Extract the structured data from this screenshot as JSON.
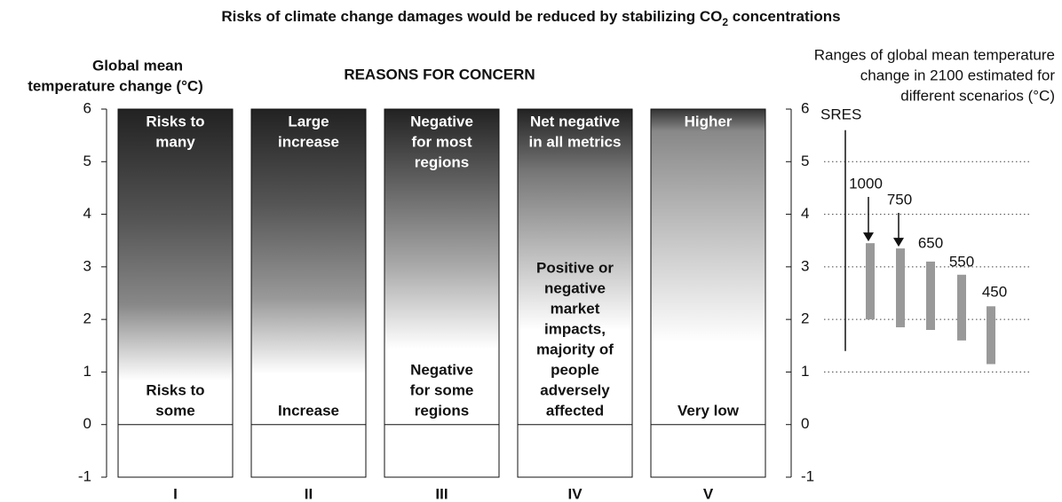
{
  "chart_data": {
    "type": "embers",
    "title": [
      "Risks of climate change damages would be reduced by stabilizing CO",
      "2",
      " concentrations"
    ],
    "y_label": [
      "Global mean",
      "temperature change (°C)"
    ],
    "columns_title": "REASONS FOR CONCERN",
    "right_title": [
      "Ranges of global mean temperature",
      "change in 2100 estimated for",
      "different scenarios (°C)"
    ],
    "ylim": [
      -1,
      6
    ],
    "yticks": [
      -1,
      0,
      1,
      2,
      3,
      4,
      5,
      6
    ],
    "columns": [
      {
        "numeral": "I",
        "top": [
          "Risks to",
          "many"
        ],
        "bottom": [
          "Risks to",
          "some"
        ]
      },
      {
        "numeral": "II",
        "top": [
          "Large",
          "increase"
        ],
        "bottom": [
          "Increase"
        ]
      },
      {
        "numeral": "III",
        "top": [
          "Negative",
          "for most",
          "regions"
        ],
        "bottom": [
          "Negative",
          "for some",
          "regions"
        ]
      },
      {
        "numeral": "IV",
        "top": [
          "Net negative",
          "in all metrics"
        ],
        "bottom": [
          "Positive or",
          "negative",
          "market",
          "impacts,",
          "majority of",
          "people",
          "adversely",
          "affected"
        ]
      },
      {
        "numeral": "V",
        "top": [
          "Higher"
        ],
        "bottom": [
          "Very low"
        ]
      }
    ],
    "sres": {
      "name": "SRES",
      "range": [
        1.4,
        5.6
      ]
    },
    "scenarios": [
      {
        "name": "1000",
        "range": [
          2.0,
          3.45
        ]
      },
      {
        "name": "750",
        "range": [
          1.85,
          3.35
        ]
      },
      {
        "name": "650",
        "range": [
          1.8,
          3.1
        ]
      },
      {
        "name": "550",
        "range": [
          1.6,
          2.85
        ]
      },
      {
        "name": "450",
        "range": [
          1.15,
          2.25
        ]
      }
    ],
    "bar_color": "#999999"
  }
}
